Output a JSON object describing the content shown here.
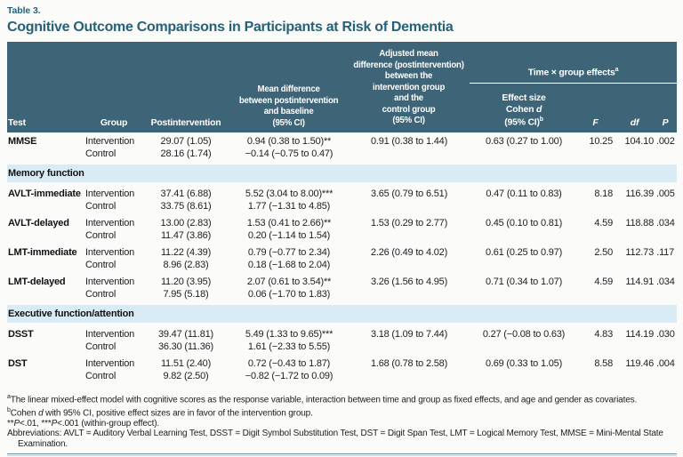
{
  "meta": {
    "label": "Table 3.",
    "title": "Cognitive Outcome Comparisons in Participants at Risk of Dementia"
  },
  "colors": {
    "header_bg": "#3e6477",
    "section_bg": "#d9ecf6",
    "title_teal": "#266177",
    "rule": "#6e8ba1"
  },
  "header": {
    "test": "Test",
    "group": "Group",
    "postintervention": "Postintervention",
    "mean_diff": "Mean difference\nbetween postintervention\nand baseline\n(95% CI)",
    "adjusted_diff": "Adjusted mean\ndifference (postintervention)\nbetween the\nintervention group\nand the\ncontrol group\n(95% CI)",
    "time_group": "Time × group effects",
    "time_group_sup": "a",
    "effect_line1": "Effect size",
    "effect_line2_prefix": "Cohen ",
    "effect_line2_italic": "d",
    "effect_line3": "(95% CI)",
    "effect_sup": "b",
    "f": "F",
    "df": "df",
    "p": "P"
  },
  "sections": [
    {
      "label": "",
      "tests": [
        {
          "name": "MMSE",
          "rows": [
            {
              "group": "Intervention",
              "post": "29.07 (1.05)",
              "mean": "0.94 (0.38 to 1.50)**",
              "adj": "0.91 (0.38 to 1.44)",
              "effect": "0.63 (0.27 to 1.00)",
              "f": "10.25",
              "df": "104.10",
              "p": ".002"
            },
            {
              "group": "Control",
              "post": "28.16 (1.74)",
              "mean": "−0.14 (−0.75 to 0.47)",
              "adj": "",
              "effect": "",
              "f": "",
              "df": "",
              "p": ""
            }
          ]
        }
      ]
    },
    {
      "label": "Memory function",
      "tests": [
        {
          "name": "AVLT-immediate",
          "rows": [
            {
              "group": "Intervention",
              "post": "37.41 (6.88)",
              "mean": "5.52 (3.04 to 8.00)***",
              "adj": "3.65 (0.79 to 6.51)",
              "effect": "0.47 (0.11 to 0.83)",
              "f": "8.18",
              "df": "116.39",
              "p": ".005"
            },
            {
              "group": "Control",
              "post": "33.75 (8.61)",
              "mean": "1.77 (−1.31 to 4.85)",
              "adj": "",
              "effect": "",
              "f": "",
              "df": "",
              "p": ""
            }
          ]
        },
        {
          "name": "AVLT-delayed",
          "rows": [
            {
              "group": "Intervention",
              "post": "13.00 (2.83)",
              "mean": "1.53 (0.41 to 2.66)**",
              "adj": "1.53 (0.29 to 2.77)",
              "effect": "0.45 (0.10 to 0.81)",
              "f": "4.59",
              "df": "118.88",
              "p": ".034"
            },
            {
              "group": "Control",
              "post": "11.47 (3.86)",
              "mean": "0.20 (−1.14 to 1.54)",
              "adj": "",
              "effect": "",
              "f": "",
              "df": "",
              "p": ""
            }
          ]
        },
        {
          "name": "LMT-immediate",
          "rows": [
            {
              "group": "Intervention",
              "post": "11.22 (4.39)",
              "mean": "0.79 (−0.77 to 2.34)",
              "adj": "2.26 (0.49 to 4.02)",
              "effect": "0.61 (0.25 to 0.97)",
              "f": "2.50",
              "df": "112.73",
              "p": ".117"
            },
            {
              "group": "Control",
              "post": "8.96 (2.83)",
              "mean": "0.18 (−1.68 to 2.04)",
              "adj": "",
              "effect": "",
              "f": "",
              "df": "",
              "p": ""
            }
          ]
        },
        {
          "name": "LMT-delayed",
          "rows": [
            {
              "group": "Intervention",
              "post": "11.20 (3.95)",
              "mean": "2.07 (0.61 to 3.54)**",
              "adj": "3.26 (1.56 to 4.95)",
              "effect": "0.71 (0.34 to 1.07)",
              "f": "4.59",
              "df": "114.91",
              "p": ".034"
            },
            {
              "group": "Control",
              "post": "7.95 (5.18)",
              "mean": "0.06 (−1.70 to 1.83)",
              "adj": "",
              "effect": "",
              "f": "",
              "df": "",
              "p": ""
            }
          ]
        }
      ]
    },
    {
      "label": "Executive function/attention",
      "tests": [
        {
          "name": "DSST",
          "rows": [
            {
              "group": "Intervention",
              "post": "39.47 (11.81)",
              "mean": "5.49 (1.33 to 9.65)***",
              "adj": "3.18 (1.09 to 7.44)",
              "effect": "0.27 (−0.08 to 0.63)",
              "f": "4.83",
              "df": "114.19",
              "p": ".030"
            },
            {
              "group": "Control",
              "post": "36.30 (11.36)",
              "mean": "1.61 (−2.33 to 5.55)",
              "adj": "",
              "effect": "",
              "f": "",
              "df": "",
              "p": ""
            }
          ]
        },
        {
          "name": "DST",
          "rows": [
            {
              "group": "Intervention",
              "post": "11.51 (2.40)",
              "mean": "0.72 (−0.43 to 1.87)",
              "adj": "1.68 (0.78 to 2.58)",
              "effect": "0.69 (0.33 to 1.05)",
              "f": "8.58",
              "df": "119.46",
              "p": ".004"
            },
            {
              "group": "Control",
              "post": "9.82 (2.50)",
              "mean": "−0.82 (−1.72 to 0.09)",
              "adj": "",
              "effect": "",
              "f": "",
              "df": "",
              "p": ""
            }
          ]
        }
      ]
    }
  ],
  "footnotes": {
    "a_sup": "a",
    "a_text": "The linear mixed-effect model with cognitive scores as the response variable, interaction between time and group as fixed effects, and age and gender as covariates.",
    "b_sup": "b",
    "b_prefix": "Cohen ",
    "b_italic": "d",
    "b_text": " with 95% CI, positive effect sizes are in favor of the intervention group.",
    "sig_s1": "**",
    "sig_p1": "P",
    "sig_s2": "<.01, ***",
    "sig_p2": "P",
    "sig_s3": "<.001 (within-group effect).",
    "abbr": "Abbreviations: AVLT = Auditory Verbal Learning Test, DSST = Digit Symbol Substitution Test, DST = Digit Span Test, LMT = Logical Memory Test, MMSE = Mini-Mental State Examination."
  }
}
